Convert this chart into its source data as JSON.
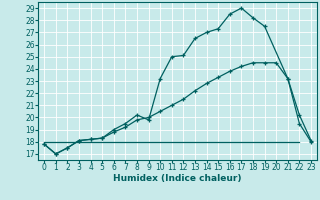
{
  "xlabel": "Humidex (Indice chaleur)",
  "ylabel": "",
  "bg_color": "#c8eaea",
  "line_color": "#006060",
  "grid_color": "#b0d8d8",
  "xlim": [
    -0.5,
    23.5
  ],
  "ylim": [
    16.5,
    29.5
  ],
  "xticks": [
    0,
    1,
    2,
    3,
    4,
    5,
    6,
    7,
    8,
    9,
    10,
    11,
    12,
    13,
    14,
    15,
    16,
    17,
    18,
    19,
    20,
    21,
    22,
    23
  ],
  "yticks": [
    17,
    18,
    19,
    20,
    21,
    22,
    23,
    24,
    25,
    26,
    27,
    28,
    29
  ],
  "line1_x": [
    0,
    1,
    2,
    3,
    4,
    5,
    6,
    7,
    8,
    9,
    10,
    11,
    12,
    13,
    14,
    15,
    16,
    17,
    18,
    19,
    20,
    21,
    22
  ],
  "line1_y": [
    18,
    18,
    18,
    18,
    18,
    18,
    18,
    18,
    18,
    18,
    18,
    18,
    18,
    18,
    18,
    18,
    18,
    18,
    18,
    18,
    18,
    18,
    18
  ],
  "line2_x": [
    0,
    1,
    2,
    3,
    4,
    5,
    6,
    7,
    8,
    9,
    10,
    11,
    12,
    13,
    14,
    15,
    16,
    17,
    18,
    19,
    21,
    22,
    23
  ],
  "line2_y": [
    17.8,
    17.0,
    17.5,
    18.1,
    18.2,
    18.3,
    19.0,
    19.5,
    20.2,
    19.8,
    23.2,
    25.0,
    25.1,
    26.5,
    27.0,
    27.3,
    28.5,
    29.0,
    28.2,
    27.5,
    23.2,
    19.5,
    18.0
  ],
  "line3_x": [
    0,
    1,
    2,
    3,
    4,
    5,
    6,
    7,
    8,
    9,
    10,
    11,
    12,
    13,
    14,
    15,
    16,
    17,
    18,
    19,
    20,
    21,
    22,
    23
  ],
  "line3_y": [
    17.8,
    17.0,
    17.5,
    18.1,
    18.2,
    18.3,
    18.8,
    19.2,
    19.8,
    20.0,
    20.5,
    21.0,
    21.5,
    22.2,
    22.8,
    23.3,
    23.8,
    24.2,
    24.5,
    24.5,
    24.5,
    23.2,
    20.2,
    18.1
  ],
  "title_fontsize": 7,
  "axis_fontsize": 6.5,
  "tick_fontsize": 5.5
}
